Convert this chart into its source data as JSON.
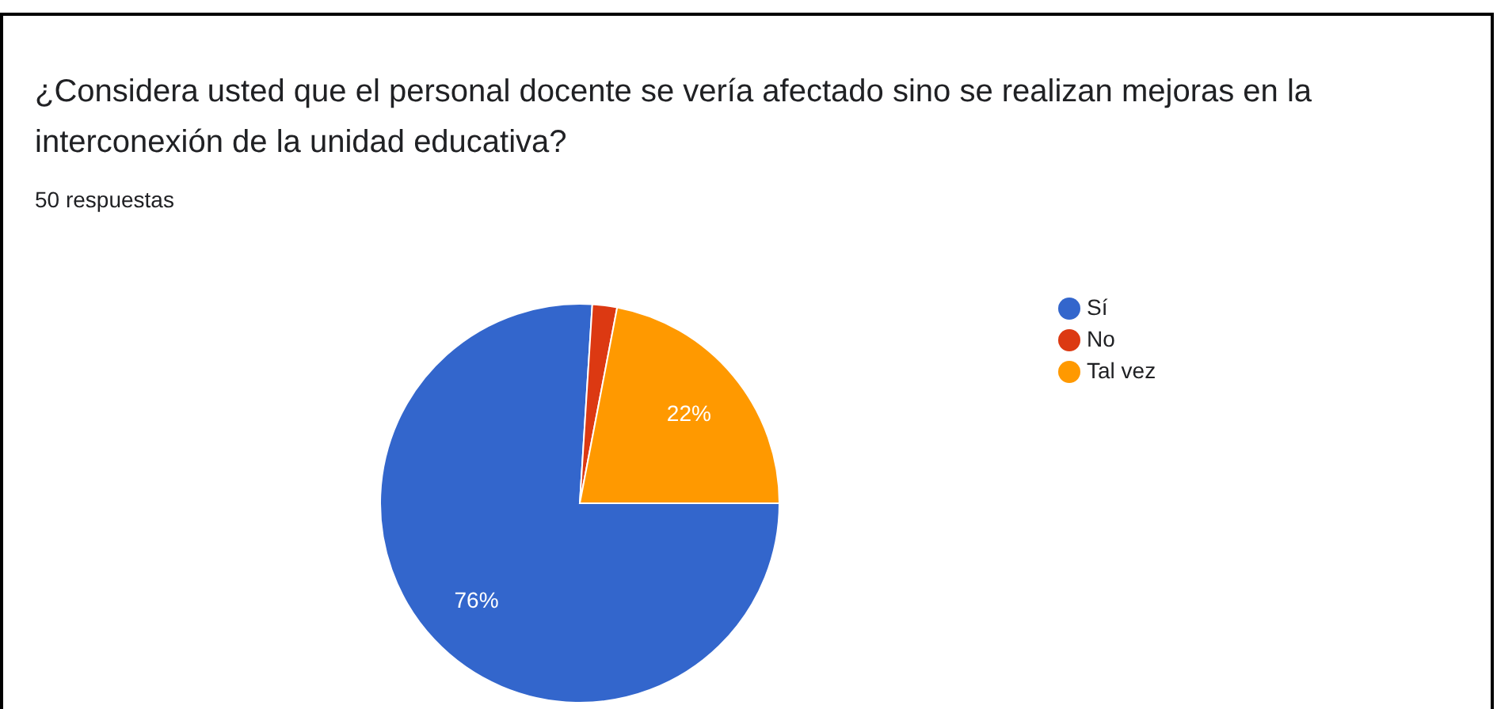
{
  "chart_data": {
    "type": "pie",
    "title": "¿Considera usted que el personal docente se vería afectado sino se realizan mejoras en la interconexión de la unidad educativa?",
    "subtitle": "50 respuestas",
    "categories": [
      "Sí",
      "No",
      "Tal vez"
    ],
    "values": [
      76,
      2,
      22
    ],
    "colors": [
      "#3366cc",
      "#dc3912",
      "#ff9900"
    ],
    "value_labels": [
      "76%",
      null,
      "22%"
    ],
    "legend": "top right"
  }
}
